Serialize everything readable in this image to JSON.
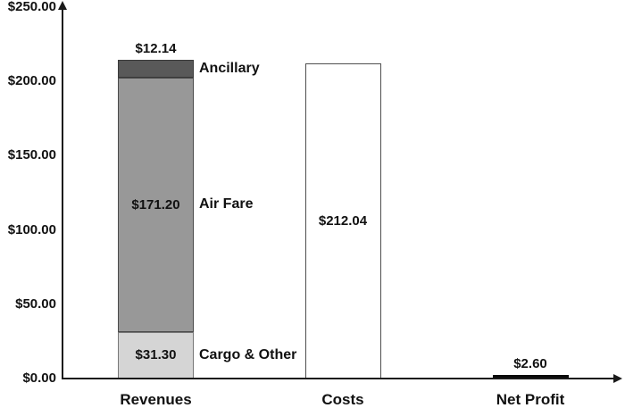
{
  "chart_data": {
    "type": "bar",
    "subtype": "stacked-bar-with-comparison",
    "title": "",
    "xlabel": "",
    "ylabel": "",
    "ylim": [
      0,
      250
    ],
    "grid": false,
    "legend_position": "inline-right-of-segments",
    "y_ticks": [
      {
        "value": 0,
        "label": "$0.00"
      },
      {
        "value": 50,
        "label": "$50.00"
      },
      {
        "value": 100,
        "label": "$100.00"
      },
      {
        "value": 150,
        "label": "$150.00"
      },
      {
        "value": 200,
        "label": "$200.00"
      },
      {
        "value": 250,
        "label": "$250.00"
      }
    ],
    "categories": [
      "Revenues",
      "Costs",
      "Net Profit"
    ],
    "bars": [
      {
        "category": "Revenues",
        "total": 214.64,
        "segments": [
          {
            "name": "Cargo & Other",
            "value": 31.3,
            "value_label": "$31.30",
            "value_label_pos": "inside",
            "side_label": "Cargo & Other",
            "fill": "#d5d5d5",
            "border": "#777777"
          },
          {
            "name": "Air Fare",
            "value": 171.2,
            "value_label": "$171.20",
            "value_label_pos": "inside",
            "side_label": "Air Fare",
            "fill": "#989898",
            "border": "#4a4a4a"
          },
          {
            "name": "Ancillary",
            "value": 12.14,
            "value_label": "$12.14",
            "value_label_pos": "above",
            "side_label": "Ancillary",
            "fill": "#595959",
            "border": "#3a3a3a"
          }
        ]
      },
      {
        "category": "Costs",
        "total": 212.04,
        "segments": [
          {
            "name": "Costs",
            "value": 212.04,
            "value_label": "$212.04",
            "value_label_pos": "inside",
            "side_label": "",
            "fill": "#ffffff",
            "border": "#4f4f4f"
          }
        ]
      },
      {
        "category": "Net Profit",
        "total": 2.6,
        "segments": [
          {
            "name": "Net Profit",
            "value": 2.6,
            "value_label": "$2.60",
            "value_label_pos": "above",
            "side_label": "",
            "fill": "#0a0a0a",
            "border": "#0a0a0a"
          }
        ]
      }
    ],
    "colors": {
      "axis": "#1a1a1a",
      "text": "#111111",
      "background": "#ffffff"
    }
  }
}
